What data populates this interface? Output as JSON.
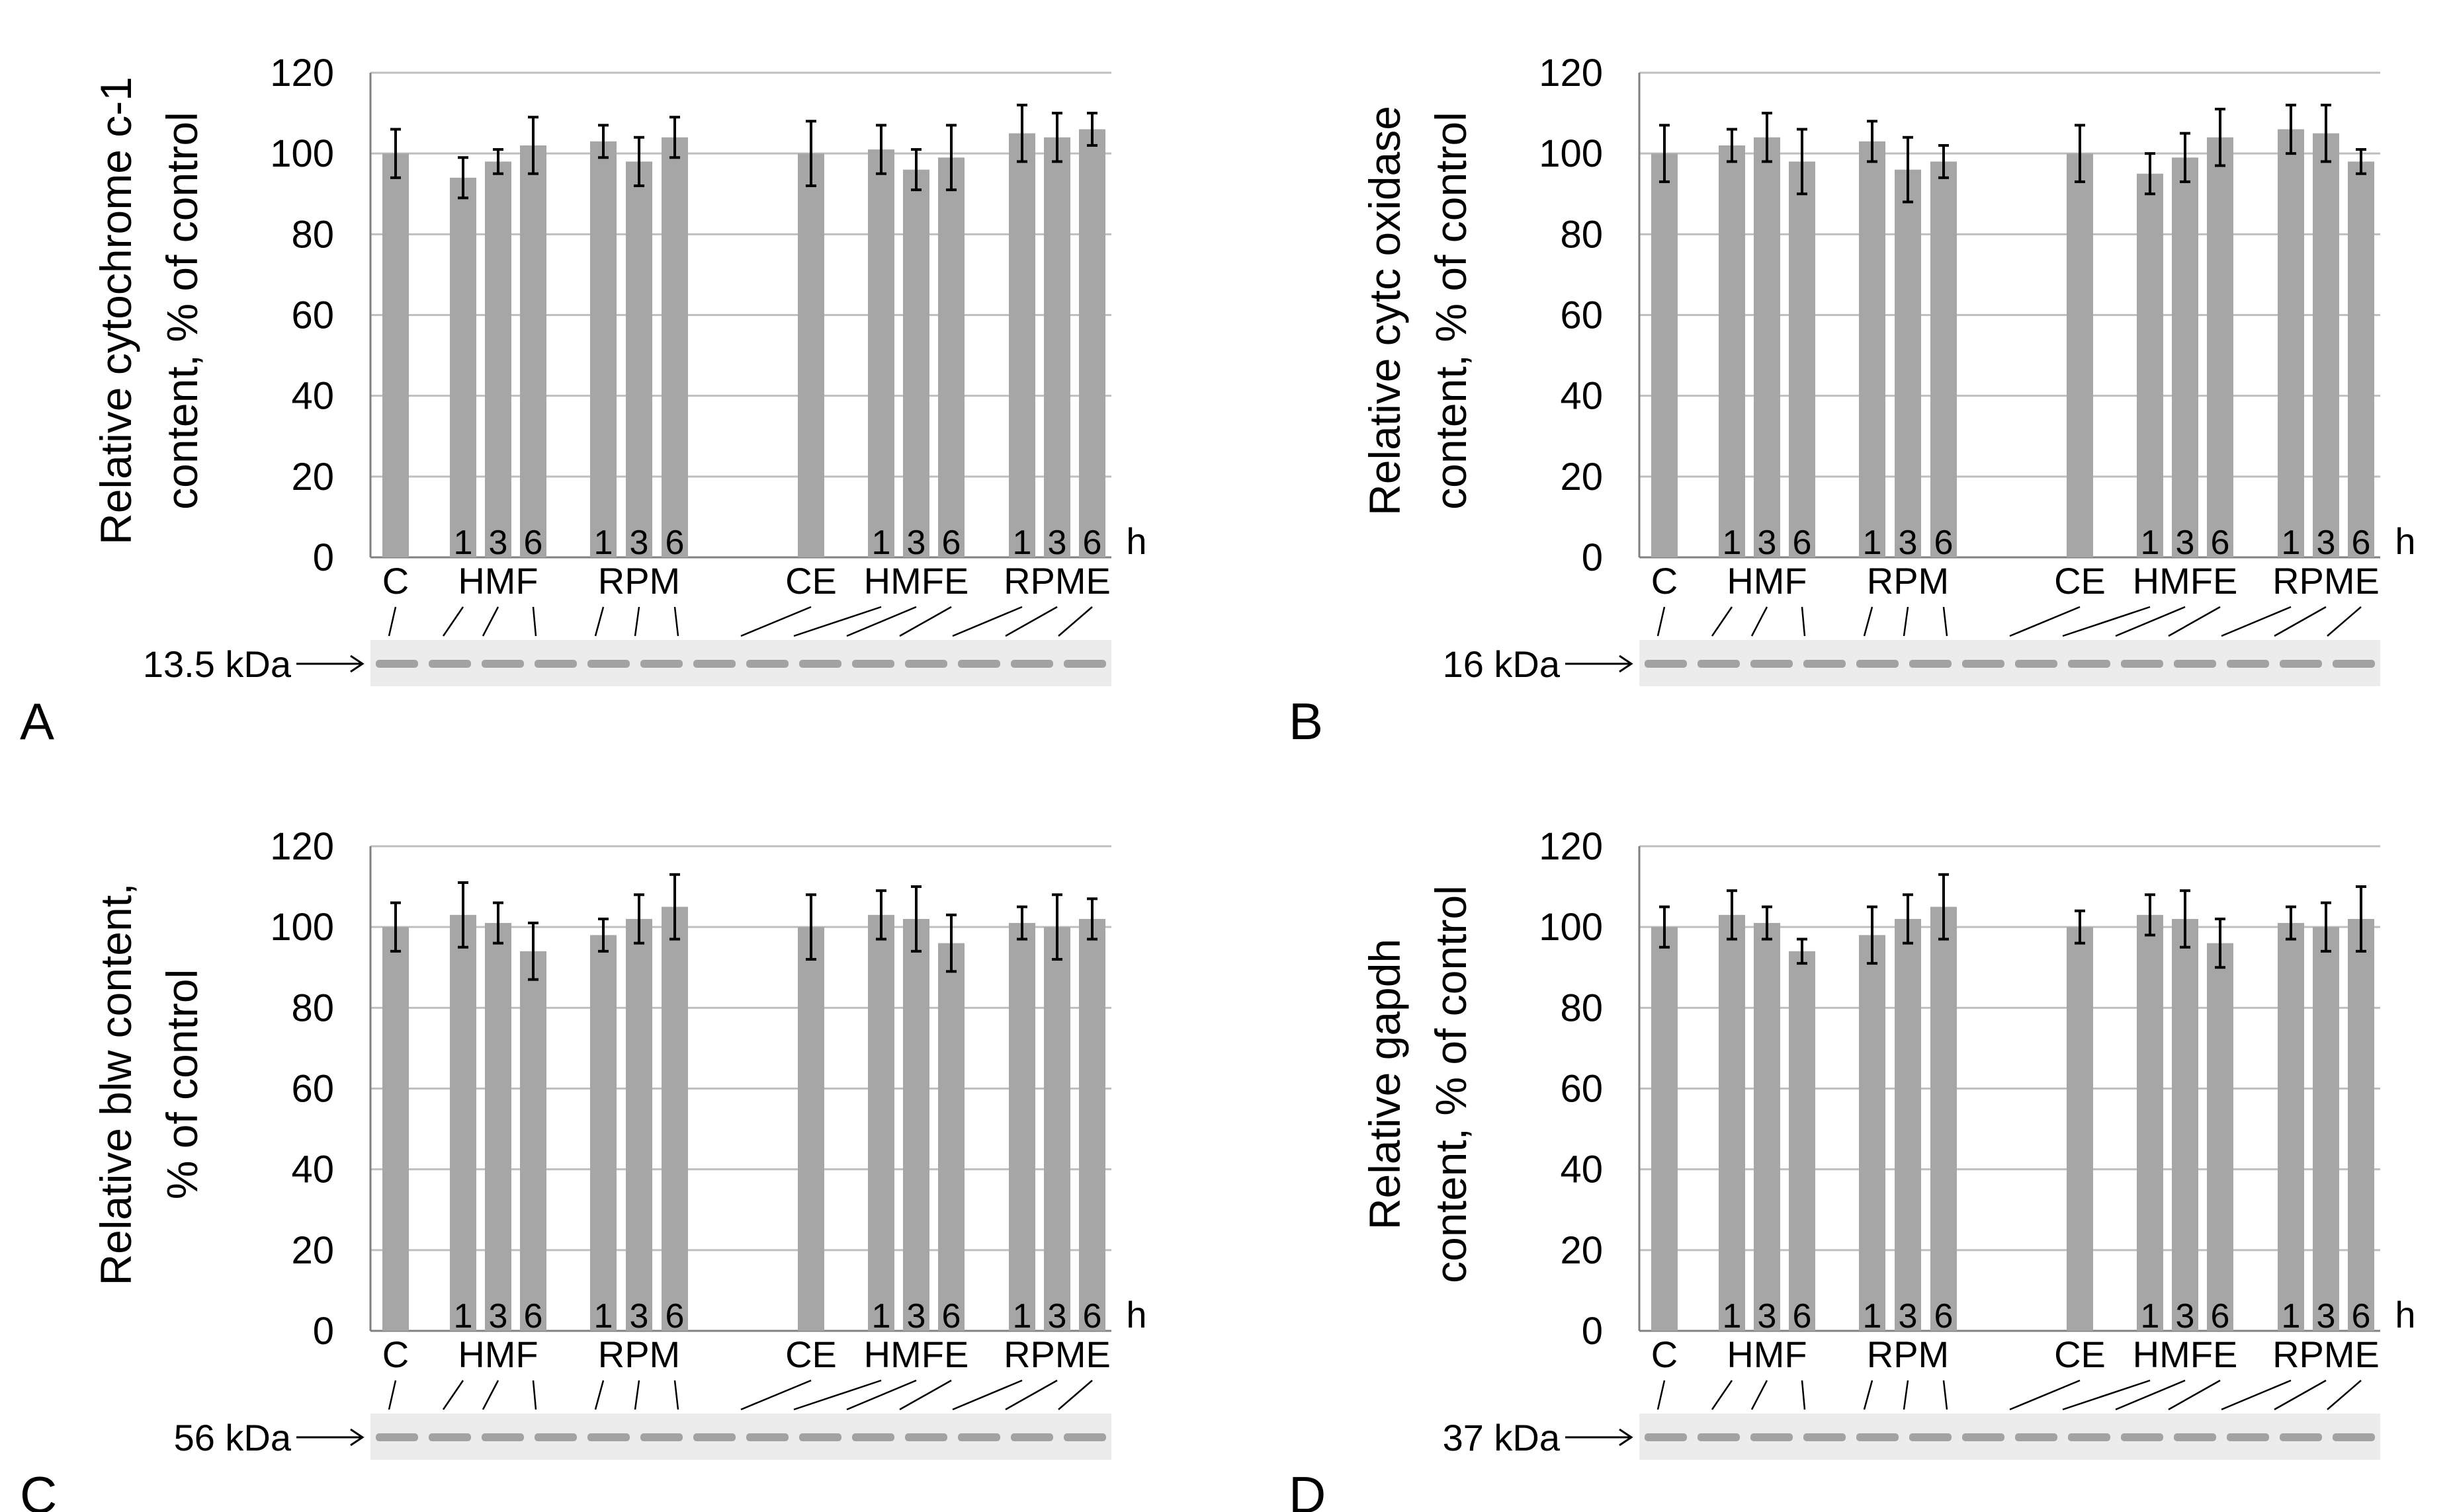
{
  "colors": {
    "bar": "#a6a6a6",
    "grid": "#bfbfbf",
    "axis": "#808080",
    "text": "#000000",
    "blot_bg": "#ececec",
    "band": "#8a8a8a"
  },
  "chart_data": [
    {
      "panel_letter": "A",
      "type": "bar",
      "ylabel_line1": "Relative cytochrome c-1",
      "ylabel_line2": "content, % of control",
      "ylim": [
        0,
        120
      ],
      "yticks": [
        "0",
        "20",
        "40",
        "60",
        "80",
        "100",
        "120"
      ],
      "unit_label": "h",
      "group_labels": [
        "C",
        "HMF",
        "RPM",
        "CE",
        "HMFE",
        "RPME"
      ],
      "hour_labels": [
        "1",
        "3",
        "6"
      ],
      "values": [
        100,
        94,
        98,
        102,
        103,
        98,
        104,
        100,
        101,
        96,
        99,
        105,
        104,
        106
      ],
      "errors": [
        6,
        5,
        3,
        7,
        4,
        6,
        5,
        8,
        6,
        5,
        8,
        7,
        6,
        4
      ],
      "blot_label": "13.5 kDa"
    },
    {
      "panel_letter": "B",
      "type": "bar",
      "ylabel_line1": "Relative cytc oxidase",
      "ylabel_line2": "content, % of control",
      "ylim": [
        0,
        120
      ],
      "yticks": [
        "0",
        "20",
        "40",
        "60",
        "80",
        "100",
        "120"
      ],
      "unit_label": "h",
      "group_labels": [
        "C",
        "HMF",
        "RPM",
        "CE",
        "HMFE",
        "RPME"
      ],
      "hour_labels": [
        "1",
        "3",
        "6"
      ],
      "values": [
        100,
        102,
        104,
        98,
        103,
        96,
        98,
        100,
        95,
        99,
        104,
        106,
        105,
        98
      ],
      "errors": [
        7,
        4,
        6,
        8,
        5,
        8,
        4,
        7,
        5,
        6,
        7,
        6,
        7,
        3
      ],
      "blot_label": "16 kDa"
    },
    {
      "panel_letter": "C",
      "type": "bar",
      "ylabel_line1": "Relative blw content,",
      "ylabel_line2": "% of control",
      "ylim": [
        0,
        120
      ],
      "yticks": [
        "0",
        "20",
        "40",
        "60",
        "80",
        "100",
        "120"
      ],
      "unit_label": "h",
      "group_labels": [
        "C",
        "HMF",
        "RPM",
        "CE",
        "HMFE",
        "RPME"
      ],
      "hour_labels": [
        "1",
        "3",
        "6"
      ],
      "values": [
        100,
        103,
        101,
        94,
        98,
        102,
        105,
        100,
        103,
        102,
        96,
        101,
        100,
        102
      ],
      "errors": [
        6,
        8,
        5,
        7,
        4,
        6,
        8,
        8,
        6,
        8,
        7,
        4,
        8,
        5
      ],
      "blot_label": "56 kDa"
    },
    {
      "panel_letter": "D",
      "type": "bar",
      "ylabel_line1": "Relative gapdh",
      "ylabel_line2": "content, % of control",
      "ylim": [
        0,
        120
      ],
      "yticks": [
        "0",
        "20",
        "40",
        "60",
        "80",
        "100",
        "120"
      ],
      "unit_label": "h",
      "group_labels": [
        "C",
        "HMF",
        "RPM",
        "CE",
        "HMFE",
        "RPME"
      ],
      "hour_labels": [
        "1",
        "3",
        "6"
      ],
      "values": [
        100,
        103,
        101,
        94,
        98,
        102,
        105,
        100,
        103,
        102,
        96,
        101,
        100,
        102
      ],
      "errors": [
        5,
        6,
        4,
        3,
        7,
        6,
        8,
        4,
        5,
        7,
        6,
        4,
        6,
        8
      ],
      "blot_label": "37 kDa"
    }
  ]
}
